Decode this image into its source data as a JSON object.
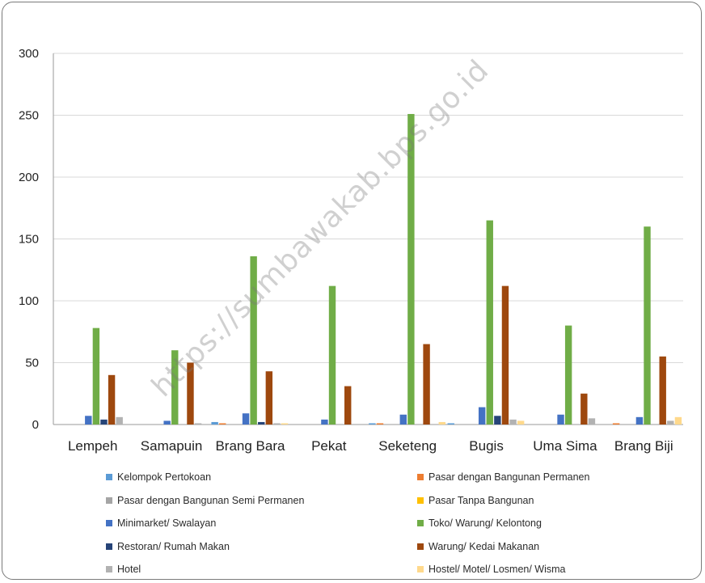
{
  "chart_data": {
    "type": "bar",
    "title": "",
    "xlabel": "",
    "ylabel": "",
    "ylim": [
      0,
      300
    ],
    "yticks": [
      0,
      50,
      100,
      150,
      200,
      250,
      300
    ],
    "grid": true,
    "legend_position": "bottom",
    "categories": [
      "Lempeh",
      "Samapuin",
      "Brang Bara",
      "Pekat",
      "Seketeng",
      "Bugis",
      "Uma Sima",
      "Brang Biji"
    ],
    "series": [
      {
        "name": "Kelompok Pertokoan",
        "color": "#5b9bd5",
        "values": [
          0,
          0,
          2,
          0,
          1,
          1,
          0,
          0
        ]
      },
      {
        "name": "Pasar dengan Bangunan Permanen",
        "color": "#ed7d31",
        "values": [
          0,
          0,
          1,
          0,
          1,
          0,
          0,
          1
        ]
      },
      {
        "name": "Pasar dengan Bangunan Semi Permanen",
        "color": "#a5a5a5",
        "values": [
          0,
          0,
          0,
          0,
          0,
          0,
          0,
          0
        ]
      },
      {
        "name": "Pasar Tanpa Bangunan",
        "color": "#ffc000",
        "values": [
          0,
          0,
          0,
          0,
          0,
          0,
          0,
          0
        ]
      },
      {
        "name": "Minimarket/ Swalayan",
        "color": "#4472c4",
        "values": [
          7,
          3,
          9,
          4,
          8,
          14,
          8,
          6
        ]
      },
      {
        "name": "Toko/ Warung/ Kelontong",
        "color": "#70ad47",
        "values": [
          78,
          60,
          136,
          112,
          251,
          165,
          80,
          160
        ]
      },
      {
        "name": "Restoran/ Rumah Makan",
        "color": "#264478",
        "values": [
          4,
          0,
          2,
          0,
          0,
          7,
          0,
          0
        ]
      },
      {
        "name": "Warung/ Kedai Makanan",
        "color": "#9e480e",
        "values": [
          40,
          50,
          43,
          31,
          65,
          112,
          25,
          55
        ]
      },
      {
        "name": "Hotel",
        "color": "#b2b2b2",
        "values": [
          6,
          1,
          1,
          0,
          0,
          4,
          5,
          3
        ]
      },
      {
        "name": "Hostel/ Motel/ Losmen/ Wisma",
        "color": "#ffd98c",
        "values": [
          0,
          0,
          1,
          0,
          2,
          3,
          0,
          6
        ]
      }
    ]
  },
  "watermark": "https://sumbawakab.bps.go.id"
}
